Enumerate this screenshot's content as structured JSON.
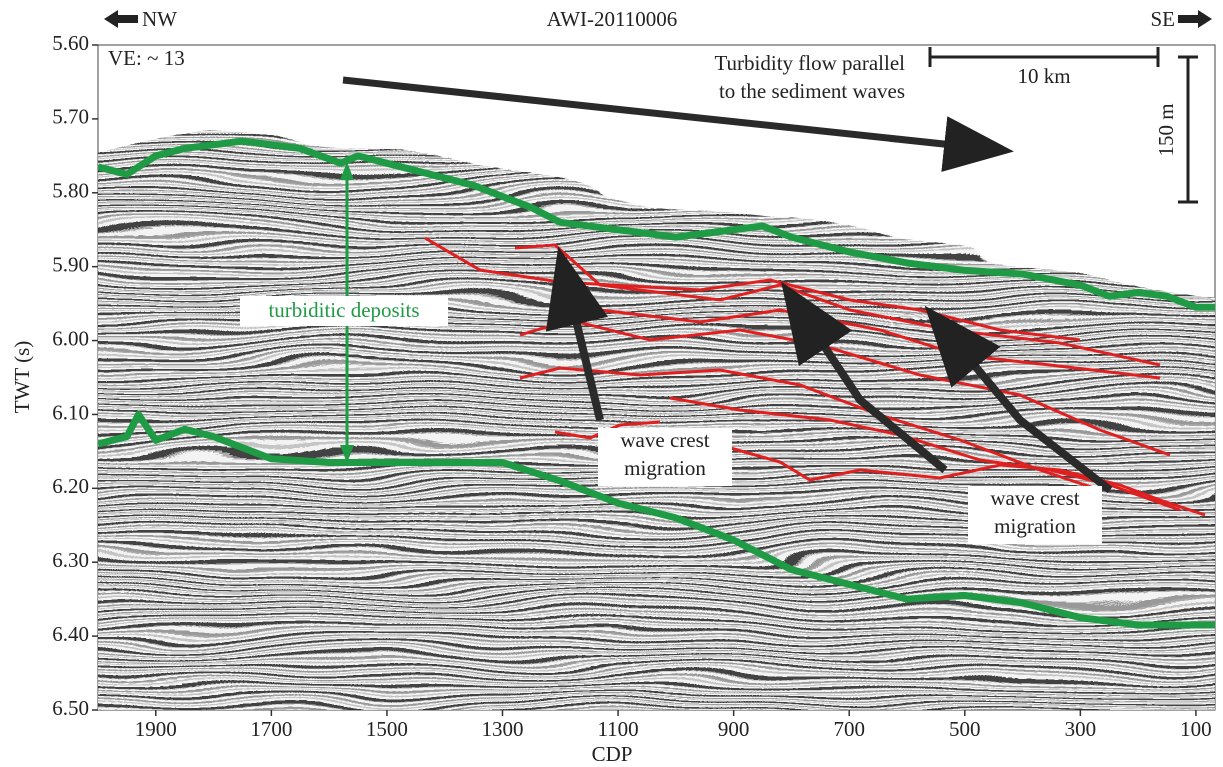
{
  "chart_data": {
    "type": "line",
    "title": "AWI-20110006",
    "x_label": "CDP",
    "y_label": "TWT (s)",
    "annotations": [
      "NW",
      "SE",
      "VE: ~ 13",
      "Turbidity flow parallel",
      "to the sediment waves",
      "10 km",
      "150 m",
      "turbiditic deposits",
      "wave crest",
      "migration",
      "wave crest",
      "migration"
    ],
    "xlim": [
      2000,
      67
    ],
    "ylim": [
      6.5,
      5.6
    ],
    "xticks": [
      1900,
      1700,
      1500,
      1300,
      1100,
      900,
      700,
      500,
      300,
      100
    ],
    "yticks": [
      {
        "value": 5.6,
        "label": "5.60"
      },
      {
        "value": 5.7,
        "label": "5.70"
      },
      {
        "value": 5.8,
        "label": "5.80"
      },
      {
        "value": 5.9,
        "label": "5.90"
      },
      {
        "value": 6.0,
        "label": "6.00"
      },
      {
        "value": 6.1,
        "label": "6.10"
      },
      {
        "value": 6.2,
        "label": "6.20"
      },
      {
        "value": 6.3,
        "label": "6.30"
      },
      {
        "value": 6.4,
        "label": "6.40"
      },
      {
        "value": 6.5,
        "label": "6.50"
      }
    ],
    "series": [
      {
        "color": "#1f9a45",
        "x": [
          2000,
          1950,
          1900,
          1850,
          1750,
          1650,
          1580,
          1550,
          1450,
          1350,
          1250,
          1200,
          1100,
          1000,
          900,
          850,
          800,
          700,
          600,
          500,
          400,
          300,
          250,
          200,
          150,
          100,
          67
        ],
        "values": [
          5.765,
          5.775,
          5.75,
          5.74,
          5.73,
          5.74,
          5.76,
          5.75,
          5.77,
          5.79,
          5.82,
          5.84,
          5.85,
          5.86,
          5.85,
          5.845,
          5.86,
          5.88,
          5.895,
          5.905,
          5.91,
          5.925,
          5.94,
          5.935,
          5.94,
          5.955,
          5.955
        ]
      },
      {
        "color": "#1f9a45",
        "x": [
          2000,
          1950,
          1930,
          1900,
          1850,
          1800,
          1700,
          1600,
          1400,
          1300,
          1200,
          1100,
          1000,
          900,
          800,
          700,
          600,
          500,
          400,
          300,
          200,
          67
        ],
        "values": [
          6.14,
          6.13,
          6.1,
          6.135,
          6.12,
          6.13,
          6.16,
          6.165,
          6.165,
          6.165,
          6.19,
          6.22,
          6.24,
          6.27,
          6.31,
          6.33,
          6.35,
          6.345,
          6.355,
          6.375,
          6.385,
          6.385
        ]
      }
    ]
  }
}
